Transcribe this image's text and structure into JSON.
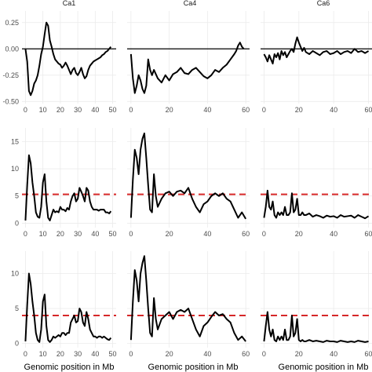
{
  "chart_data": {
    "type": "line",
    "facet_labels": [
      "Ca1",
      "Ca4",
      "Ca6"
    ],
    "xlabel": "Genomic position in Mb",
    "threshold_color": "#d62728",
    "line_color": "#000000",
    "columns": [
      {
        "name": "Ca1",
        "xlim": [
          -2,
          52
        ],
        "ticks": [
          0,
          10,
          20,
          30,
          40,
          50
        ]
      },
      {
        "name": "Ca4",
        "xlim": [
          -2,
          62
        ],
        "ticks": [
          0,
          20,
          40,
          60
        ]
      },
      {
        "name": "Ca6",
        "xlim": [
          -2,
          62
        ],
        "ticks": [
          0,
          20,
          40,
          60
        ]
      }
    ],
    "rows": [
      {
        "ylim": [
          -0.52,
          0.36
        ],
        "yticks": [
          -0.5,
          -0.25,
          0.0,
          0.25
        ],
        "ytick_labels": [
          "-0.50",
          "-0.25",
          "0.00",
          "0.25"
        ],
        "reference_line": 0.0,
        "reference_style": "solid-black",
        "series": [
          {
            "x": [
              0,
              1,
              2,
              3,
              4,
              5,
              6,
              7,
              8,
              9,
              10,
              11,
              12,
              13,
              14,
              15,
              16,
              17,
              18,
              19,
              20,
              21,
              22,
              23,
              24,
              25,
              26,
              27,
              28,
              29,
              30,
              31,
              32,
              33,
              34,
              35,
              36,
              37,
              38,
              39,
              40,
              41,
              42,
              43,
              44,
              45,
              46,
              47,
              48,
              49
            ],
            "y": [
              0.0,
              -0.12,
              -0.4,
              -0.44,
              -0.4,
              -0.33,
              -0.3,
              -0.25,
              -0.16,
              -0.05,
              0.02,
              0.14,
              0.25,
              0.22,
              0.08,
              0.02,
              -0.05,
              -0.1,
              -0.12,
              -0.14,
              -0.15,
              -0.18,
              -0.16,
              -0.13,
              -0.16,
              -0.2,
              -0.24,
              -0.2,
              -0.18,
              -0.23,
              -0.25,
              -0.22,
              -0.18,
              -0.24,
              -0.28,
              -0.26,
              -0.2,
              -0.16,
              -0.14,
              -0.12,
              -0.11,
              -0.1,
              -0.09,
              -0.08,
              -0.06,
              -0.05,
              -0.03,
              -0.02,
              0.0,
              0.02
            ]
          },
          {
            "x": [
              0,
              1,
              2,
              3,
              4,
              5,
              6,
              7,
              8,
              9,
              10,
              11,
              12,
              14,
              16,
              18,
              20,
              22,
              24,
              26,
              28,
              30,
              32,
              34,
              36,
              38,
              40,
              42,
              44,
              46,
              48,
              50,
              52,
              54,
              55,
              56,
              57,
              58,
              59
            ],
            "y": [
              -0.05,
              -0.28,
              -0.42,
              -0.35,
              -0.25,
              -0.3,
              -0.38,
              -0.42,
              -0.35,
              -0.1,
              -0.2,
              -0.25,
              -0.2,
              -0.28,
              -0.32,
              -0.25,
              -0.3,
              -0.24,
              -0.22,
              -0.18,
              -0.23,
              -0.24,
              -0.2,
              -0.18,
              -0.22,
              -0.26,
              -0.28,
              -0.25,
              -0.2,
              -0.22,
              -0.18,
              -0.15,
              -0.1,
              -0.05,
              -0.02,
              0.03,
              0.06,
              0.02,
              0.0
            ]
          },
          {
            "x": [
              0,
              1,
              2,
              3,
              4,
              5,
              6,
              7,
              8,
              9,
              10,
              11,
              12,
              13,
              14,
              15,
              16,
              17,
              18,
              19,
              20,
              21,
              22,
              23,
              24,
              26,
              28,
              30,
              32,
              34,
              36,
              38,
              40,
              42,
              44,
              46,
              48,
              50,
              52,
              54,
              56,
              58,
              60
            ],
            "y": [
              -0.05,
              -0.08,
              -0.12,
              -0.06,
              -0.1,
              -0.14,
              -0.05,
              -0.08,
              -0.04,
              -0.1,
              -0.02,
              -0.06,
              -0.03,
              -0.08,
              -0.05,
              -0.02,
              0.0,
              -0.03,
              0.05,
              0.11,
              0.06,
              0.02,
              -0.02,
              0.01,
              -0.03,
              -0.05,
              -0.02,
              -0.04,
              -0.06,
              -0.03,
              -0.02,
              -0.05,
              -0.04,
              -0.02,
              -0.05,
              -0.03,
              -0.02,
              -0.04,
              0.0,
              -0.03,
              -0.02,
              -0.04,
              -0.02
            ]
          }
        ]
      },
      {
        "ylim": [
          -0.8,
          17.5
        ],
        "yticks": [
          0,
          5,
          10,
          15
        ],
        "ytick_labels": [
          "0",
          "5",
          "10",
          "15"
        ],
        "reference_line": 5.3,
        "reference_style": "dashed-red",
        "series": [
          {
            "x": [
              0,
              1,
              2,
              3,
              4,
              5,
              6,
              7,
              8,
              9,
              10,
              11,
              12,
              13,
              14,
              15,
              16,
              17,
              18,
              19,
              20,
              21,
              22,
              23,
              24,
              25,
              26,
              27,
              28,
              29,
              30,
              31,
              32,
              33,
              34,
              35,
              36,
              37,
              38,
              39,
              40,
              41,
              42,
              43,
              44,
              45,
              46,
              47,
              48,
              49
            ],
            "y": [
              0.5,
              7.0,
              12.5,
              11.0,
              7.5,
              5.0,
              2.0,
              1.2,
              1.0,
              3.0,
              7.5,
              9.0,
              4.0,
              1.0,
              0.5,
              1.5,
              2.5,
              2.0,
              2.2,
              2.0,
              3.0,
              2.5,
              2.5,
              2.2,
              2.8,
              2.5,
              4.0,
              5.0,
              5.5,
              4.0,
              4.5,
              6.5,
              5.8,
              5.0,
              4.0,
              6.5,
              6.0,
              4.0,
              3.0,
              2.5,
              2.5,
              2.5,
              2.3,
              2.5,
              2.5,
              2.5,
              2.0,
              2.0,
              1.8,
              2.2
            ]
          },
          {
            "x": [
              0,
              1,
              2,
              3,
              4,
              5,
              6,
              7,
              8,
              9,
              10,
              11,
              12,
              13,
              14,
              16,
              18,
              20,
              22,
              24,
              26,
              28,
              30,
              32,
              34,
              36,
              38,
              40,
              42,
              44,
              46,
              48,
              50,
              52,
              54,
              56,
              58,
              60
            ],
            "y": [
              1.0,
              8.0,
              13.5,
              12.0,
              9.0,
              13.5,
              15.5,
              16.5,
              12.0,
              7.0,
              2.5,
              2.0,
              9.0,
              5.0,
              3.0,
              4.5,
              5.5,
              5.8,
              5.0,
              5.8,
              6.0,
              5.5,
              6.5,
              4.5,
              3.0,
              2.0,
              3.5,
              4.0,
              5.0,
              5.5,
              5.0,
              5.5,
              4.5,
              4.0,
              2.5,
              1.0,
              2.0,
              0.8
            ]
          },
          {
            "x": [
              0,
              1,
              2,
              3,
              4,
              5,
              6,
              7,
              8,
              9,
              10,
              11,
              12,
              13,
              14,
              15,
              16,
              17,
              18,
              19,
              20,
              21,
              22,
              23,
              24,
              26,
              28,
              30,
              32,
              34,
              36,
              38,
              40,
              42,
              44,
              46,
              48,
              50,
              52,
              54,
              56,
              58,
              60
            ],
            "y": [
              1.0,
              3.0,
              6.0,
              3.0,
              2.5,
              4.0,
              1.5,
              1.0,
              2.0,
              1.5,
              2.0,
              1.5,
              3.0,
              1.5,
              1.5,
              2.0,
              5.5,
              2.0,
              2.5,
              4.5,
              1.5,
              1.5,
              2.0,
              1.5,
              1.5,
              1.8,
              1.2,
              1.5,
              1.3,
              1.0,
              1.4,
              1.2,
              1.3,
              1.0,
              1.5,
              1.2,
              1.3,
              1.4,
              1.0,
              1.5,
              1.2,
              0.9,
              1.3
            ]
          }
        ]
      },
      {
        "ylim": [
          -0.6,
          13.2
        ],
        "yticks": [
          0,
          5,
          10
        ],
        "ytick_labels": [
          "0",
          "5",
          "10"
        ],
        "reference_line": 4.0,
        "reference_style": "dashed-red",
        "series": [
          {
            "x": [
              0,
              1,
              2,
              3,
              4,
              5,
              6,
              7,
              8,
              9,
              10,
              11,
              12,
              13,
              14,
              15,
              16,
              17,
              18,
              19,
              20,
              21,
              22,
              23,
              24,
              25,
              26,
              27,
              28,
              29,
              30,
              31,
              32,
              33,
              34,
              35,
              36,
              37,
              38,
              39,
              40,
              41,
              42,
              43,
              44,
              45,
              46,
              47,
              48,
              49
            ],
            "y": [
              0.3,
              5.5,
              10.0,
              8.5,
              6.0,
              4.0,
              1.5,
              0.5,
              0.2,
              2.0,
              6.0,
              7.0,
              2.5,
              0.5,
              0.2,
              0.5,
              1.0,
              0.8,
              1.0,
              1.2,
              1.0,
              1.5,
              1.5,
              1.2,
              1.5,
              1.5,
              3.0,
              3.5,
              4.0,
              3.0,
              3.2,
              5.0,
              4.5,
              3.0,
              2.5,
              4.5,
              3.5,
              2.0,
              1.5,
              1.0,
              1.0,
              0.8,
              1.0,
              1.0,
              0.8,
              1.0,
              0.8,
              0.6,
              0.5,
              0.8
            ]
          },
          {
            "x": [
              0,
              1,
              2,
              3,
              4,
              5,
              6,
              7,
              8,
              9,
              10,
              11,
              12,
              13,
              14,
              16,
              18,
              20,
              22,
              24,
              26,
              28,
              30,
              32,
              34,
              36,
              38,
              40,
              42,
              44,
              46,
              48,
              50,
              52,
              54,
              56,
              58,
              60
            ],
            "y": [
              0.5,
              6.0,
              10.5,
              9.0,
              6.0,
              10.0,
              11.5,
              12.5,
              9.0,
              5.0,
              1.5,
              1.0,
              6.5,
              3.5,
              2.0,
              3.5,
              4.0,
              4.5,
              3.5,
              4.5,
              4.8,
              4.5,
              5.0,
              3.5,
              2.0,
              1.0,
              2.5,
              3.0,
              3.8,
              4.5,
              4.0,
              4.2,
              3.5,
              3.0,
              1.5,
              0.5,
              1.0,
              0.3
            ]
          },
          {
            "x": [
              0,
              1,
              2,
              3,
              4,
              5,
              6,
              7,
              8,
              9,
              10,
              11,
              12,
              13,
              14,
              15,
              16,
              17,
              18,
              19,
              20,
              21,
              22,
              23,
              24,
              26,
              28,
              30,
              32,
              34,
              36,
              38,
              40,
              42,
              44,
              46,
              48,
              50,
              52,
              54,
              56,
              58,
              60
            ],
            "y": [
              0.3,
              2.5,
              4.5,
              2.0,
              1.0,
              2.0,
              0.5,
              0.3,
              1.0,
              0.5,
              1.0,
              0.5,
              2.0,
              0.5,
              0.5,
              1.0,
              4.0,
              1.0,
              1.5,
              3.5,
              0.5,
              0.3,
              0.5,
              0.3,
              0.3,
              0.5,
              0.3,
              0.4,
              0.3,
              0.2,
              0.4,
              0.3,
              0.3,
              0.2,
              0.4,
              0.3,
              0.2,
              0.3,
              0.2,
              0.4,
              0.3,
              0.2,
              0.3
            ]
          }
        ]
      }
    ]
  }
}
